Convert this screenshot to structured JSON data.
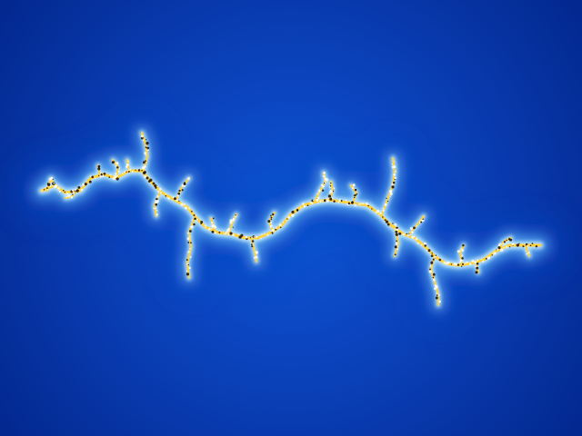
{
  "image": {
    "subject": "julia-set-fractal",
    "palette": {
      "background_deep": "#02258a",
      "background_mid": "#0a47c4",
      "glow": "#bfe6ff",
      "core": "#ffd23a",
      "core_dark": "#1a0800"
    }
  }
}
